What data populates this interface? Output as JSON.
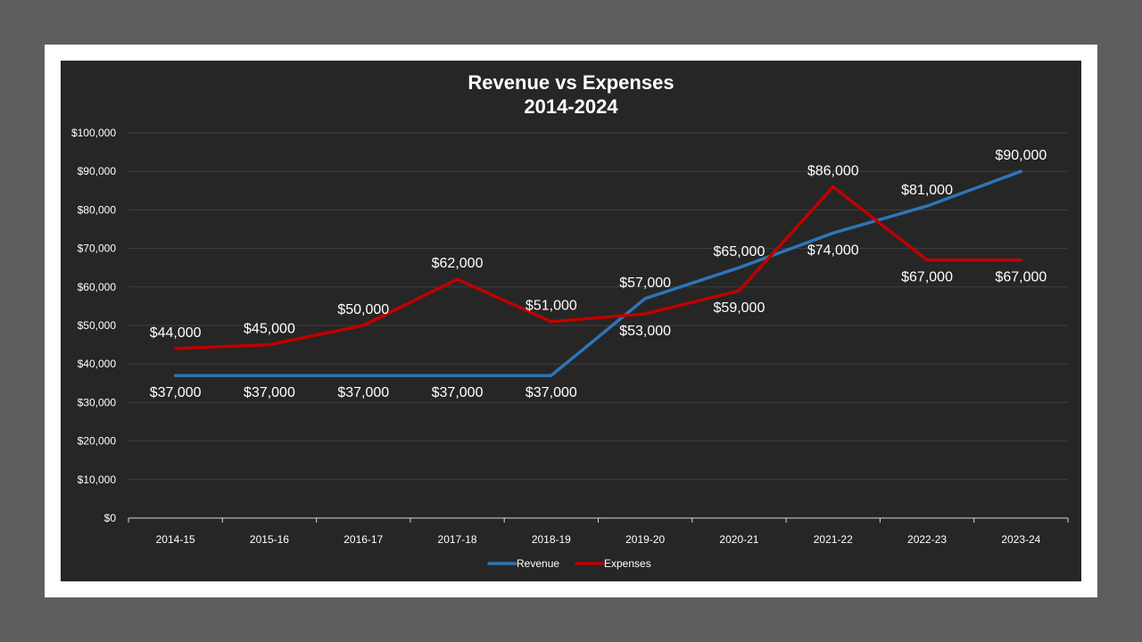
{
  "chart_data": {
    "type": "line",
    "title": "Revenue vs Expenses",
    "subtitle": "2014-2024",
    "categories": [
      "2014-15",
      "2015-16",
      "2016-17",
      "2017-18",
      "2018-19",
      "2019-20",
      "2020-21",
      "2021-22",
      "2022-23",
      "2023-24"
    ],
    "series": [
      {
        "name": "Revenue",
        "color": "#2e75b6",
        "values": [
          37000,
          37000,
          37000,
          37000,
          37000,
          57000,
          65000,
          74000,
          81000,
          90000
        ],
        "labels": [
          "$37,000",
          "$37,000",
          "$37,000",
          "$37,000",
          "$37,000",
          "$57,000",
          "$65,000",
          "$74,000",
          "$81,000",
          "$90,000"
        ],
        "label_position": [
          "below",
          "below",
          "below",
          "below",
          "below",
          "above",
          "above",
          "below",
          "above",
          "above"
        ]
      },
      {
        "name": "Expenses",
        "color": "#c00000",
        "values": [
          44000,
          45000,
          50000,
          62000,
          51000,
          53000,
          59000,
          86000,
          67000,
          67000
        ],
        "labels": [
          "$44,000",
          "$45,000",
          "$50,000",
          "$62,000",
          "$51,000",
          "$53,000",
          "$59,000",
          "$86,000",
          "$67,000",
          "$67,000"
        ],
        "label_position": [
          "above",
          "above",
          "above",
          "above",
          "above",
          "below",
          "below",
          "above",
          "below",
          "below"
        ]
      }
    ],
    "ylim": [
      0,
      100000
    ],
    "yticks": [
      0,
      10000,
      20000,
      30000,
      40000,
      50000,
      60000,
      70000,
      80000,
      90000,
      100000
    ],
    "ytick_labels": [
      "$0",
      "$10,000",
      "$20,000",
      "$30,000",
      "$40,000",
      "$50,000",
      "$60,000",
      "$70,000",
      "$80,000",
      "$90,000",
      "$100,000"
    ],
    "xlabel": "",
    "ylabel": "",
    "grid": true,
    "legend": "bottom"
  }
}
